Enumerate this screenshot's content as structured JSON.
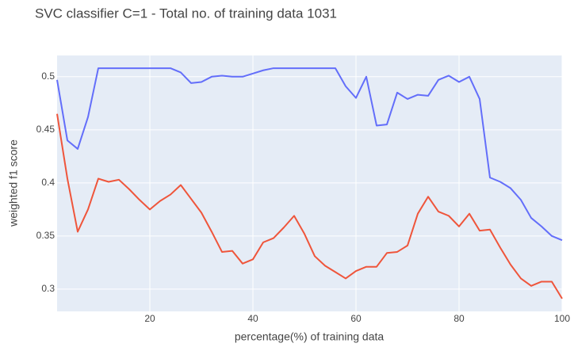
{
  "chart_data": {
    "type": "line",
    "title": "SVC classifier C=1 - Total no. of training data 1031",
    "x_label": "percentage(%) of training data",
    "y_label": "weighted f1 score",
    "x": [
      2,
      4,
      6,
      8,
      10,
      12,
      14,
      16,
      18,
      20,
      22,
      24,
      26,
      28,
      30,
      32,
      34,
      36,
      38,
      40,
      42,
      44,
      46,
      48,
      50,
      52,
      54,
      56,
      58,
      60,
      62,
      64,
      66,
      68,
      70,
      72,
      74,
      76,
      78,
      80,
      82,
      84,
      86,
      88,
      90,
      92,
      94,
      96,
      98,
      100
    ],
    "series": [
      {
        "color": "#636efa",
        "values": [
          0.497,
          0.44,
          0.432,
          0.462,
          0.508,
          0.508,
          0.508,
          0.508,
          0.508,
          0.508,
          0.508,
          0.508,
          0.504,
          0.494,
          0.495,
          0.5,
          0.501,
          0.5,
          0.5,
          0.503,
          0.506,
          0.508,
          0.508,
          0.508,
          0.508,
          0.508,
          0.508,
          0.508,
          0.491,
          0.48,
          0.5,
          0.454,
          0.455,
          0.485,
          0.479,
          0.483,
          0.482,
          0.497,
          0.501,
          0.495,
          0.5,
          0.479,
          0.405,
          0.401,
          0.395,
          0.384,
          0.367,
          0.359,
          0.35,
          0.346
        ]
      },
      {
        "color": "#ef553b",
        "values": [
          0.465,
          0.404,
          0.354,
          0.375,
          0.404,
          0.401,
          0.403,
          0.394,
          0.384,
          0.375,
          0.383,
          0.389,
          0.398,
          0.385,
          0.372,
          0.354,
          0.335,
          0.336,
          0.324,
          0.328,
          0.344,
          0.348,
          0.358,
          0.369,
          0.352,
          0.331,
          0.322,
          0.316,
          0.31,
          0.317,
          0.321,
          0.321,
          0.334,
          0.335,
          0.341,
          0.371,
          0.387,
          0.373,
          0.369,
          0.359,
          0.371,
          0.355,
          0.356,
          0.339,
          0.323,
          0.31,
          0.303,
          0.307,
          0.307,
          0.291
        ]
      }
    ],
    "xlim": [
      2,
      100
    ],
    "ylim": [
      0.279,
      0.52
    ],
    "xticks": [
      20,
      40,
      60,
      80,
      100
    ],
    "yticks": [
      0.3,
      0.35,
      0.4,
      0.45,
      0.5
    ],
    "grid": true,
    "background": "#e5ecf6"
  }
}
